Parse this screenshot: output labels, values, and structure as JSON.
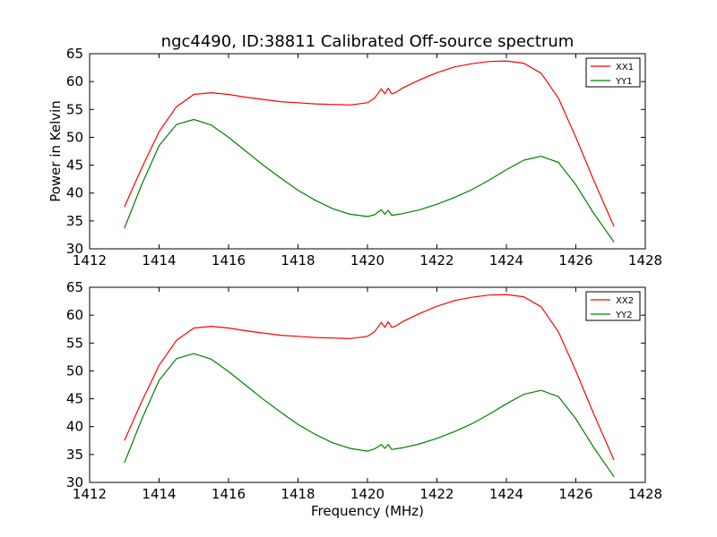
{
  "figure": {
    "title": "ngc4490, ID:38811 Calibrated Off-source spectrum",
    "ylabel": "Power in Kelvin",
    "xlabel": "Frequency (MHz)"
  },
  "chart_data": [
    {
      "type": "line",
      "title": "ngc4490, ID:38811 Calibrated Off-source spectrum",
      "xlabel": "",
      "ylabel": "Power in Kelvin",
      "xlim": [
        1412,
        1428
      ],
      "ylim": [
        30,
        65
      ],
      "xticks": [
        1412,
        1414,
        1416,
        1418,
        1420,
        1422,
        1424,
        1426,
        1428
      ],
      "yticks": [
        30,
        35,
        40,
        45,
        50,
        55,
        60,
        65
      ],
      "legend_position": "top-right",
      "grid": false,
      "series": [
        {
          "name": "XX1",
          "color": "#ff0000",
          "x": [
            1413.0,
            1413.5,
            1414.0,
            1414.5,
            1415.0,
            1415.5,
            1416.0,
            1416.5,
            1417.0,
            1417.5,
            1418.0,
            1418.5,
            1419.0,
            1419.5,
            1420.0,
            1420.2,
            1420.4,
            1420.5,
            1420.6,
            1420.7,
            1420.8,
            1421.0,
            1421.5,
            1422.0,
            1422.5,
            1423.0,
            1423.5,
            1424.0,
            1424.5,
            1425.0,
            1425.5,
            1426.0,
            1426.5,
            1427.1
          ],
          "y": [
            37.5,
            44.5,
            51.0,
            55.5,
            57.7,
            58.0,
            57.7,
            57.2,
            56.8,
            56.4,
            56.2,
            56.0,
            55.9,
            55.8,
            56.2,
            57.0,
            58.7,
            57.8,
            58.8,
            57.8,
            58.0,
            58.8,
            60.3,
            61.6,
            62.6,
            63.2,
            63.6,
            63.7,
            63.3,
            61.5,
            57.0,
            50.0,
            42.5,
            34.0
          ]
        },
        {
          "name": "YY1",
          "color": "#008000",
          "x": [
            1413.0,
            1413.5,
            1414.0,
            1414.5,
            1415.0,
            1415.5,
            1416.0,
            1416.5,
            1417.0,
            1417.5,
            1418.0,
            1418.5,
            1419.0,
            1419.5,
            1420.0,
            1420.2,
            1420.4,
            1420.5,
            1420.6,
            1420.7,
            1420.8,
            1421.0,
            1421.5,
            1422.0,
            1422.5,
            1423.0,
            1423.5,
            1424.0,
            1424.5,
            1425.0,
            1425.5,
            1426.0,
            1426.5,
            1427.1
          ],
          "y": [
            33.7,
            41.5,
            48.5,
            52.3,
            53.2,
            52.2,
            50.0,
            47.5,
            45.0,
            42.7,
            40.5,
            38.7,
            37.2,
            36.2,
            35.8,
            36.1,
            37.0,
            36.2,
            36.9,
            36.0,
            36.1,
            36.3,
            37.0,
            38.0,
            39.2,
            40.6,
            42.3,
            44.2,
            45.9,
            46.6,
            45.5,
            41.5,
            36.5,
            31.2
          ]
        }
      ]
    },
    {
      "type": "line",
      "title": "",
      "xlabel": "Frequency (MHz)",
      "ylabel": "",
      "xlim": [
        1412,
        1428
      ],
      "ylim": [
        30,
        65
      ],
      "xticks": [
        1412,
        1414,
        1416,
        1418,
        1420,
        1422,
        1424,
        1426,
        1428
      ],
      "yticks": [
        30,
        35,
        40,
        45,
        50,
        55,
        60,
        65
      ],
      "legend_position": "top-right",
      "grid": false,
      "series": [
        {
          "name": "XX2",
          "color": "#ff0000",
          "x": [
            1413.0,
            1413.5,
            1414.0,
            1414.5,
            1415.0,
            1415.5,
            1416.0,
            1416.5,
            1417.0,
            1417.5,
            1418.0,
            1418.5,
            1419.0,
            1419.5,
            1420.0,
            1420.2,
            1420.4,
            1420.5,
            1420.6,
            1420.7,
            1420.8,
            1421.0,
            1421.5,
            1422.0,
            1422.5,
            1423.0,
            1423.5,
            1424.0,
            1424.5,
            1425.0,
            1425.5,
            1426.0,
            1426.5,
            1427.1
          ],
          "y": [
            37.5,
            44.5,
            51.0,
            55.5,
            57.7,
            58.0,
            57.7,
            57.2,
            56.8,
            56.4,
            56.2,
            56.0,
            55.9,
            55.8,
            56.2,
            57.0,
            58.7,
            57.8,
            58.8,
            57.8,
            58.0,
            58.8,
            60.3,
            61.6,
            62.6,
            63.2,
            63.6,
            63.7,
            63.3,
            61.5,
            57.0,
            50.0,
            42.5,
            34.0
          ]
        },
        {
          "name": "YY2",
          "color": "#008000",
          "x": [
            1413.0,
            1413.5,
            1414.0,
            1414.5,
            1415.0,
            1415.5,
            1416.0,
            1416.5,
            1417.0,
            1417.5,
            1418.0,
            1418.5,
            1419.0,
            1419.5,
            1420.0,
            1420.2,
            1420.4,
            1420.5,
            1420.6,
            1420.7,
            1420.8,
            1421.0,
            1421.5,
            1422.0,
            1422.5,
            1423.0,
            1423.5,
            1424.0,
            1424.5,
            1425.0,
            1425.5,
            1426.0,
            1426.5,
            1427.1
          ],
          "y": [
            33.5,
            41.3,
            48.3,
            52.2,
            53.1,
            52.1,
            49.9,
            47.4,
            44.9,
            42.6,
            40.4,
            38.6,
            37.1,
            36.1,
            35.6,
            36.0,
            36.8,
            36.1,
            36.8,
            35.9,
            36.0,
            36.2,
            36.9,
            37.9,
            39.1,
            40.5,
            42.2,
            44.1,
            45.8,
            46.5,
            45.4,
            41.4,
            36.4,
            31.0
          ]
        }
      ]
    }
  ]
}
